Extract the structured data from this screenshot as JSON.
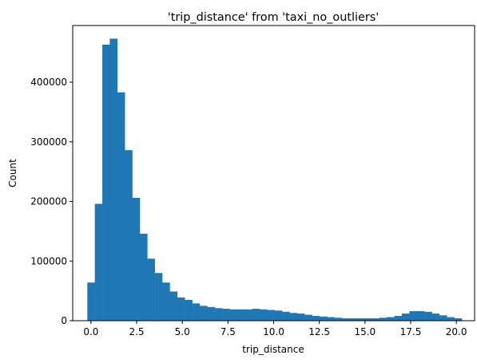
{
  "chart_data": {
    "type": "bar",
    "title": "'trip_distance' from 'taxi_no_outliers'",
    "xlabel": "trip_distance",
    "ylabel": "Count",
    "xlim": [
      -1.0,
      21.0
    ],
    "ylim": [
      0,
      495000
    ],
    "x_ticks": [
      "0.0",
      "2.5",
      "5.0",
      "7.5",
      "10.0",
      "12.5",
      "15.0",
      "17.5",
      "20.0"
    ],
    "y_ticks": [
      "0",
      "100000",
      "200000",
      "300000",
      "400000"
    ],
    "bin_edges": [
      -0.2,
      0.21,
      0.62,
      1.03,
      1.44,
      1.85,
      2.26,
      2.67,
      3.08,
      3.49,
      3.9,
      4.31,
      4.72,
      5.13,
      5.54,
      5.95,
      6.36,
      6.77,
      7.18,
      7.59,
      8.0,
      8.41,
      8.82,
      9.23,
      9.64,
      10.05,
      10.46,
      10.87,
      11.28,
      11.69,
      12.1,
      12.51,
      12.92,
      13.33,
      13.74,
      14.15,
      14.56,
      14.97,
      15.38,
      15.79,
      16.2,
      16.61,
      17.02,
      17.43,
      17.84,
      18.25,
      18.66,
      19.07,
      19.48,
      19.89,
      20.3
    ],
    "counts": [
      64000,
      196000,
      463000,
      473000,
      383000,
      286000,
      206000,
      146000,
      104000,
      80000,
      64000,
      49000,
      39000,
      35000,
      29000,
      25000,
      23000,
      21000,
      20000,
      19000,
      19000,
      19000,
      20000,
      19000,
      18000,
      17000,
      15000,
      13000,
      12000,
      10000,
      8000,
      7000,
      6000,
      5000,
      4000,
      4000,
      4000,
      4000,
      4000,
      5000,
      6000,
      8000,
      12000,
      16000,
      16000,
      15000,
      12000,
      9000,
      6000,
      4000
    ],
    "bar_color": "#1f77b4",
    "grid": false,
    "legend": "none"
  }
}
